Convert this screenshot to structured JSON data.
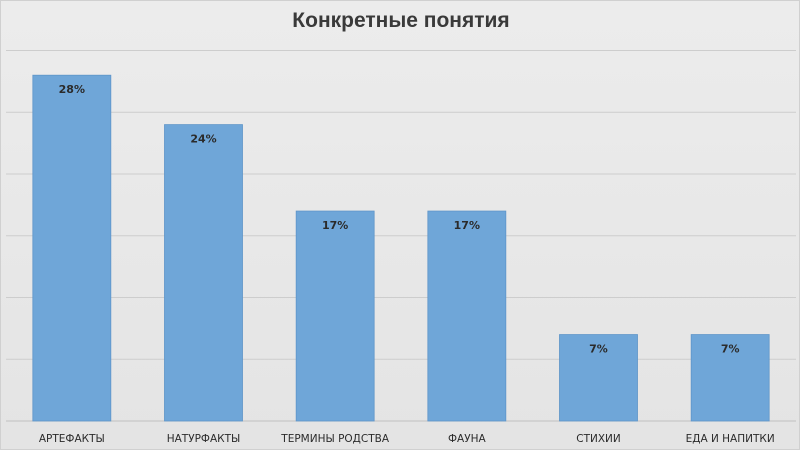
{
  "chart_data": {
    "type": "bar",
    "title": "Конкретные понятия",
    "categories": [
      "АРТЕФАКТЫ",
      "НАТУРФАКТЫ",
      "ТЕРМИНЫ РОДСТВА",
      "ФАУНА",
      "СТИХИИ",
      "ЕДА И НАПИТКИ"
    ],
    "values": [
      28,
      24,
      17,
      17,
      7,
      7
    ],
    "value_labels": [
      "28%",
      "24%",
      "17%",
      "17%",
      "7%",
      "7%"
    ],
    "unit": "%",
    "ylim": [
      0,
      30
    ],
    "grid": true,
    "legend": "none",
    "bar_color": "#6fa6d8"
  }
}
